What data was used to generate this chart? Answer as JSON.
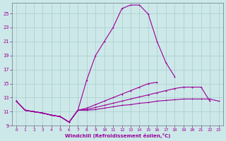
{
  "xlabel": "Windchill (Refroidissement éolien,°C)",
  "bg_color": "#cde8e8",
  "grid_color": "#a8cccc",
  "line_color": "#990099",
  "spine_color": "#667788",
  "xlim": [
    -0.5,
    23.5
  ],
  "ylim": [
    9,
    26.5
  ],
  "xticks": [
    0,
    1,
    2,
    3,
    4,
    5,
    6,
    7,
    8,
    9,
    10,
    11,
    12,
    13,
    14,
    15,
    16,
    17,
    18,
    19,
    20,
    21,
    22,
    23
  ],
  "yticks": [
    9,
    11,
    13,
    15,
    17,
    19,
    21,
    23,
    25
  ],
  "curves": [
    {
      "x": [
        0,
        1,
        2,
        3,
        4,
        5,
        6,
        7,
        8,
        9,
        10,
        11,
        12,
        13,
        14,
        15,
        16,
        17,
        18,
        19,
        20,
        21,
        22,
        23
      ],
      "y": [
        12.5,
        11.2,
        11.0,
        10.8,
        10.5,
        10.3,
        9.5,
        11.2,
        15.5,
        19.0,
        21.0,
        23.0,
        25.7,
        26.2,
        26.2,
        24.9,
        21.0,
        18.0,
        16.0,
        null,
        null,
        null,
        null,
        null
      ]
    },
    {
      "x": [
        0,
        1,
        2,
        3,
        4,
        5,
        6,
        7,
        8,
        9,
        10,
        11,
        12,
        13,
        14,
        15,
        16,
        17,
        18,
        19,
        20,
        21,
        22,
        23
      ],
      "y": [
        12.5,
        11.2,
        11.0,
        10.8,
        10.5,
        10.3,
        9.5,
        11.2,
        11.5,
        12.0,
        12.5,
        13.0,
        13.5,
        14.0,
        14.5,
        15.0,
        15.2,
        null,
        null,
        null,
        null,
        null,
        null,
        null
      ]
    },
    {
      "x": [
        0,
        1,
        2,
        3,
        4,
        5,
        6,
        7,
        8,
        9,
        10,
        11,
        12,
        13,
        14,
        15,
        16,
        17,
        18,
        19,
        20,
        21,
        22,
        23
      ],
      "y": [
        12.5,
        11.2,
        11.0,
        10.8,
        10.5,
        10.3,
        9.5,
        11.2,
        11.3,
        11.6,
        11.9,
        12.2,
        12.5,
        12.8,
        13.1,
        13.4,
        13.7,
        14.0,
        14.3,
        14.5,
        14.5,
        14.5,
        12.5,
        null
      ]
    },
    {
      "x": [
        0,
        1,
        2,
        3,
        4,
        5,
        6,
        7,
        8,
        9,
        10,
        11,
        12,
        13,
        14,
        15,
        16,
        17,
        18,
        19,
        20,
        21,
        22,
        23
      ],
      "y": [
        12.5,
        11.2,
        11.0,
        10.8,
        10.5,
        10.3,
        9.5,
        11.2,
        11.2,
        11.3,
        11.5,
        11.7,
        11.9,
        12.0,
        12.2,
        12.3,
        12.5,
        12.6,
        12.7,
        12.8,
        12.8,
        12.8,
        12.8,
        12.5
      ]
    }
  ]
}
